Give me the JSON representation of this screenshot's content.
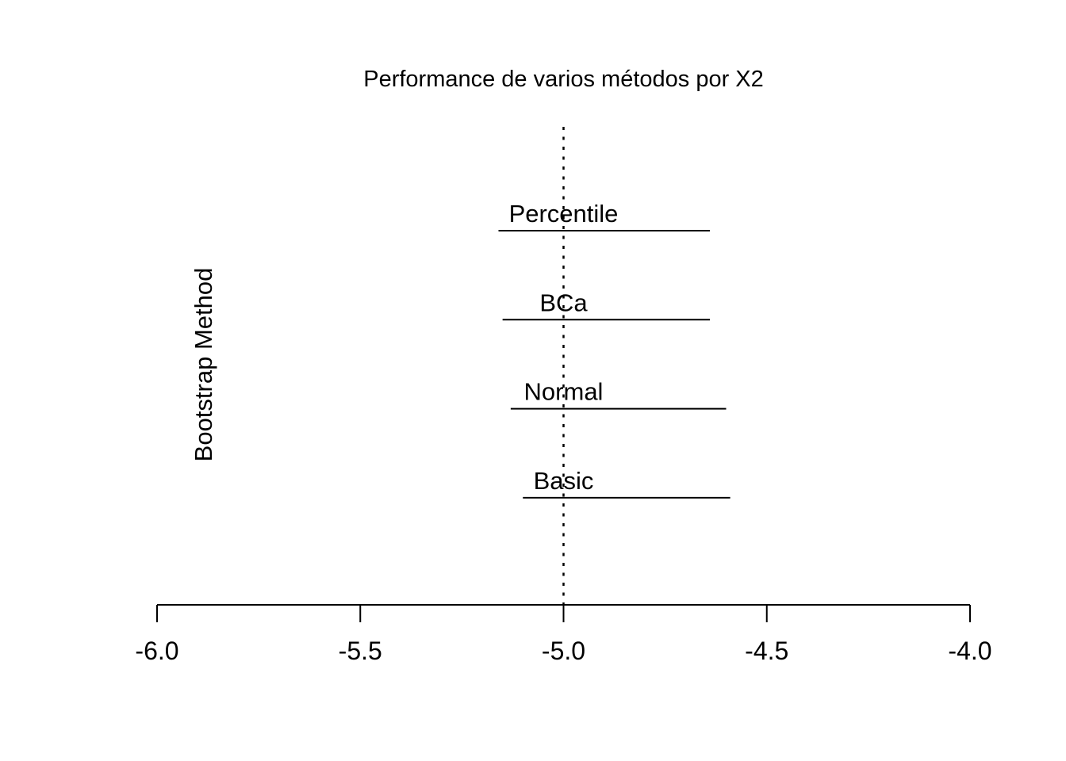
{
  "page": {
    "background_color": "#ffffff",
    "foreground_color": "#000000"
  },
  "chart_data": {
    "type": "interval",
    "title": "Performance de varios métodos por X2",
    "xlabel": "",
    "ylabel": "Bootstrap Method",
    "xlim": [
      -6.0,
      -4.0
    ],
    "x_ticks": [
      -6.0,
      -5.5,
      -5.0,
      -4.5,
      -4.0
    ],
    "x_tick_labels": [
      "-6.0",
      "-5.5",
      "-5.0",
      "-4.5",
      "-4.0"
    ],
    "grid": false,
    "legend": null,
    "reference_line": {
      "x": -5.0,
      "style": "dotted",
      "color": "#000000"
    },
    "categories": [
      "Percentile",
      "BCa",
      "Normal",
      "Basic"
    ],
    "intervals": [
      {
        "method": "Percentile",
        "lower": -5.16,
        "upper": -4.64
      },
      {
        "method": "BCa",
        "lower": -5.15,
        "upper": -4.64
      },
      {
        "method": "Normal",
        "lower": -5.13,
        "upper": -4.6
      },
      {
        "method": "Basic",
        "lower": -5.1,
        "upper": -4.59
      }
    ]
  }
}
